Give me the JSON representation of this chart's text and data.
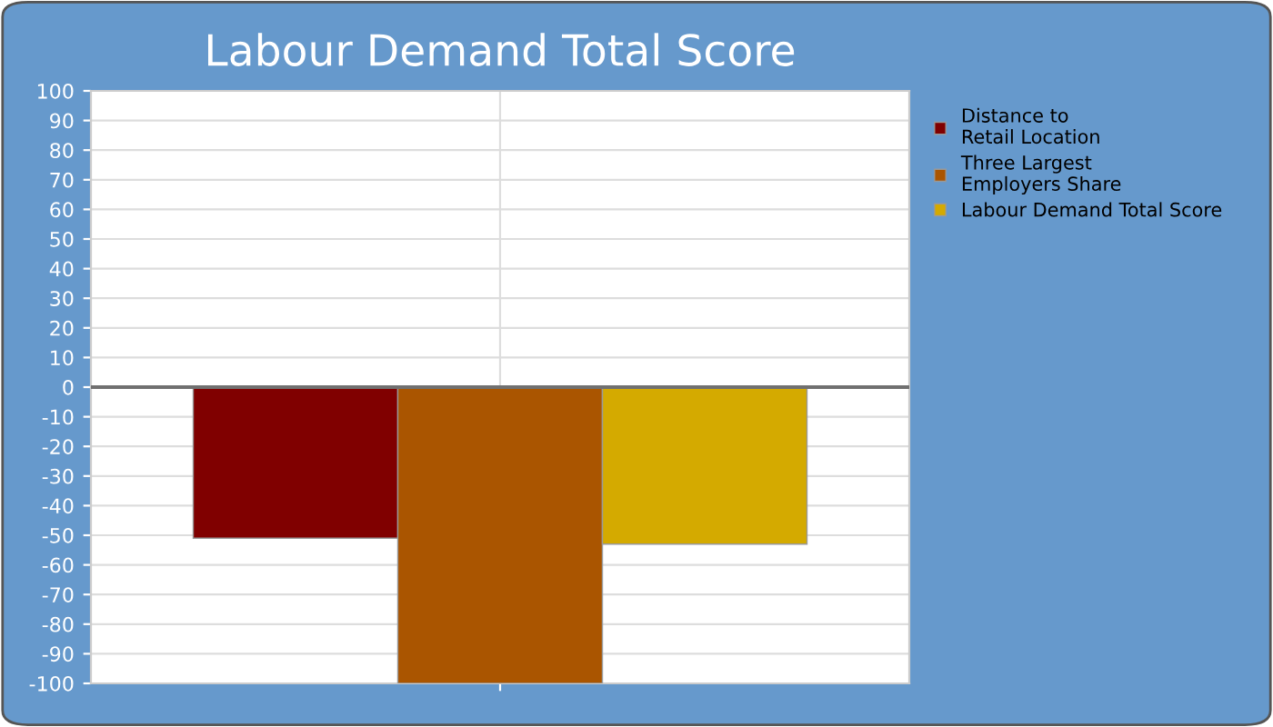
{
  "chart_data": {
    "type": "bar",
    "title": "Labour Demand Total Score",
    "categories": [
      null
    ],
    "series": [
      {
        "name": "Distance to\nRetail Location",
        "color": "#800000",
        "values": [
          -51
        ]
      },
      {
        "name": "Three Largest\nEmployers Share",
        "color": "#aa5500",
        "values": [
          -100
        ]
      },
      {
        "name": "Labour Demand Total Score",
        "color": "#d4aa00",
        "values": [
          -53
        ]
      }
    ],
    "ylim": [
      -100,
      100
    ],
    "yticks": [
      -100,
      -90,
      -80,
      -70,
      -60,
      -50,
      -40,
      -30,
      -20,
      -10,
      0,
      10,
      20,
      30,
      40,
      50,
      60,
      70,
      80,
      90,
      100
    ],
    "ref_lines": [
      {
        "axis": "y",
        "value": 0,
        "color": "#707070"
      }
    ],
    "grid": true,
    "legend": "right"
  }
}
